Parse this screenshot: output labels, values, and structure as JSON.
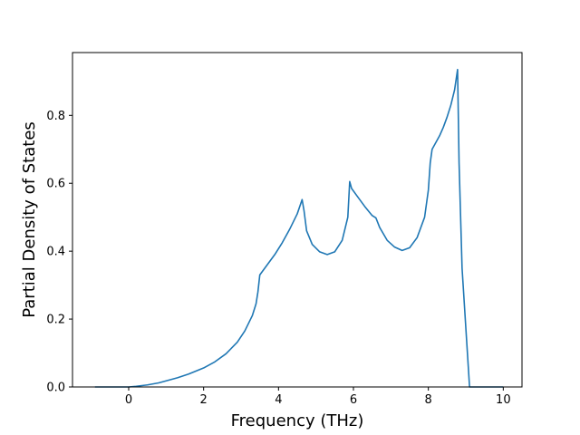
{
  "chart_data": {
    "type": "line",
    "title": "",
    "xlabel": "Frequency (THz)",
    "ylabel": "Partial Density of States",
    "xlim": [
      -1.5,
      10.5
    ],
    "ylim": [
      0.0,
      0.985
    ],
    "grid": false,
    "legend": "none",
    "xticks": [
      0,
      2,
      4,
      6,
      8,
      10
    ],
    "xtick_labels": [
      "0",
      "2",
      "4",
      "6",
      "8",
      "10"
    ],
    "yticks": [
      0.0,
      0.2,
      0.4,
      0.6,
      0.8
    ],
    "ytick_labels": [
      "0.0",
      "0.2",
      "0.4",
      "0.6",
      "0.8"
    ],
    "series": [
      {
        "color": "#1f77b4",
        "x": [
          -0.9,
          0.0,
          0.2,
          0.5,
          0.8,
          1.0,
          1.3,
          1.6,
          2.0,
          2.3,
          2.6,
          2.9,
          3.1,
          3.3,
          3.4,
          3.45,
          3.5,
          3.7,
          3.9,
          4.1,
          4.3,
          4.5,
          4.63,
          4.68,
          4.75,
          4.9,
          5.1,
          5.3,
          5.5,
          5.7,
          5.85,
          5.9,
          5.95,
          6.1,
          6.3,
          6.5,
          6.6,
          6.7,
          6.9,
          7.1,
          7.3,
          7.5,
          7.7,
          7.9,
          8.0,
          8.05,
          8.1,
          8.2,
          8.3,
          8.4,
          8.5,
          8.6,
          8.7,
          8.78,
          8.82,
          8.9,
          9.1,
          10.0
        ],
        "y": [
          0.0,
          0.0,
          0.002,
          0.006,
          0.012,
          0.018,
          0.027,
          0.038,
          0.056,
          0.074,
          0.098,
          0.132,
          0.165,
          0.21,
          0.245,
          0.28,
          0.33,
          0.36,
          0.39,
          0.425,
          0.465,
          0.51,
          0.552,
          0.52,
          0.46,
          0.42,
          0.398,
          0.39,
          0.398,
          0.432,
          0.5,
          0.605,
          0.585,
          0.562,
          0.532,
          0.505,
          0.498,
          0.47,
          0.432,
          0.412,
          0.402,
          0.41,
          0.44,
          0.5,
          0.58,
          0.66,
          0.7,
          0.72,
          0.74,
          0.765,
          0.795,
          0.83,
          0.875,
          0.935,
          0.66,
          0.35,
          0.0,
          0.0
        ]
      }
    ]
  }
}
